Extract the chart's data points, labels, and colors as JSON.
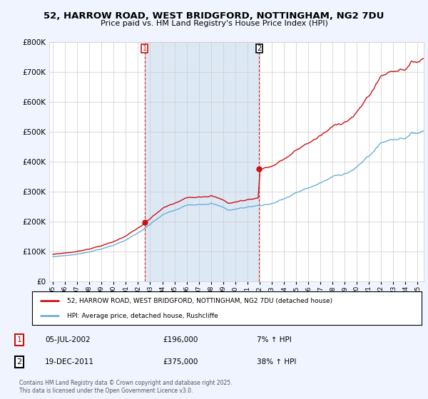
{
  "title": "52, HARROW ROAD, WEST BRIDGFORD, NOTTINGHAM, NG2 7DU",
  "subtitle": "Price paid vs. HM Land Registry's House Price Index (HPI)",
  "background_color": "#f0f4ff",
  "plot_bg_color": "#ffffff",
  "grid_color": "#cccccc",
  "shade_color": "#dde8f5",
  "purchase1_date": "05-JUL-2002",
  "purchase1_price": 196000,
  "purchase1_pct": "7% ↑ HPI",
  "purchase2_date": "19-DEC-2011",
  "purchase2_price": 375000,
  "purchase2_pct": "38% ↑ HPI",
  "legend_line1": "52, HARROW ROAD, WEST BRIDGFORD, NOTTINGHAM, NG2 7DU (detached house)",
  "legend_line2": "HPI: Average price, detached house, Rushcliffe",
  "footer": "Contains HM Land Registry data © Crown copyright and database right 2025.\nThis data is licensed under the Open Government Licence v3.0.",
  "hpi_color": "#6aafd6",
  "price_color": "#cc1111",
  "dashed_line_color": "#cc1111",
  "ylim": [
    0,
    800000
  ],
  "yticks": [
    0,
    100000,
    200000,
    300000,
    400000,
    500000,
    600000,
    700000,
    800000
  ],
  "xlim_start": 1994.7,
  "xlim_end": 2025.5
}
